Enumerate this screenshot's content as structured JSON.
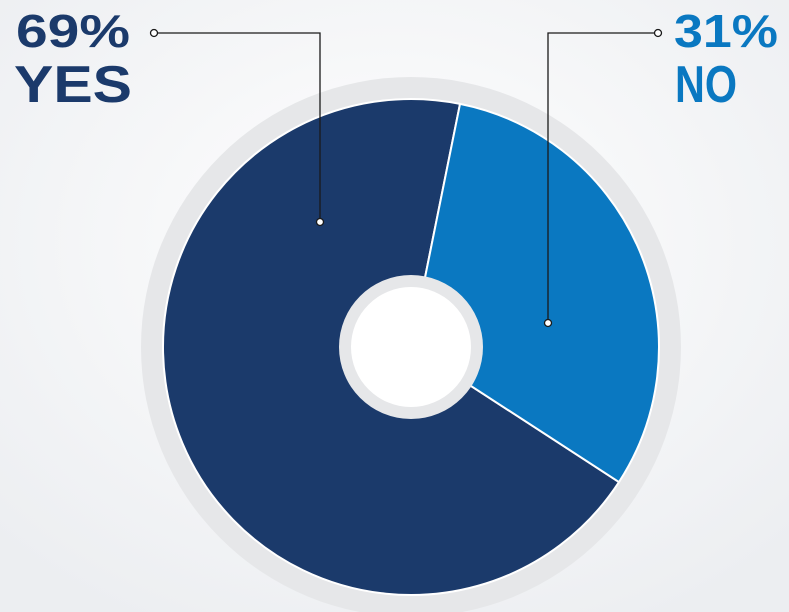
{
  "chart_data": {
    "type": "pie",
    "donut": true,
    "categories": [
      "YES",
      "NO"
    ],
    "values": [
      69,
      31
    ],
    "value_labels": [
      "69%",
      "31%"
    ],
    "colors": [
      "#1b3a6b",
      "#0a78c1"
    ]
  }
}
